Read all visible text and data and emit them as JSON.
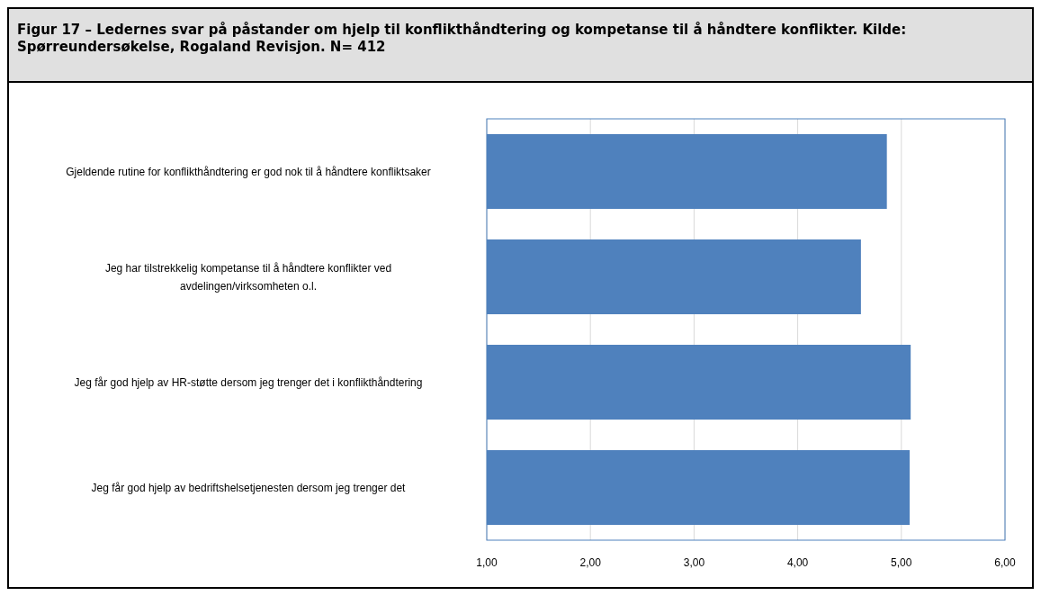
{
  "chart_data": {
    "type": "bar",
    "orientation": "horizontal",
    "title": "Figur 17 – Ledernes svar på påstander om hjelp til konflikthåndtering og kompetanse til å håndtere konflikter. Kilde: Spørreundersøkelse, Rogaland Revisjon. N= 412",
    "categories": [
      "Gjeldende rutine for konflikthåndtering er god nok til å håndtere konfliktsaker",
      "Jeg har tilstrekkelig kompetanse til å håndtere konflikter ved avdelingen/virksomheten o.l.",
      "Jeg får god hjelp av HR-støtte dersom jeg trenger det i konflikthåndtering",
      "Jeg får god hjelp av bedriftshelsetjenesten dersom jeg trenger det"
    ],
    "values": [
      4.86,
      4.61,
      5.09,
      5.08
    ],
    "color": "#4f81bd",
    "xlim": [
      1,
      6
    ],
    "xticks": [
      {
        "value": 1,
        "label": "1,00"
      },
      {
        "value": 2,
        "label": "2,00"
      },
      {
        "value": 3,
        "label": "3,00"
      },
      {
        "value": 4,
        "label": "4,00"
      },
      {
        "value": 5,
        "label": "5,00"
      },
      {
        "value": 6,
        "label": "6,00"
      }
    ],
    "grid": "x"
  }
}
